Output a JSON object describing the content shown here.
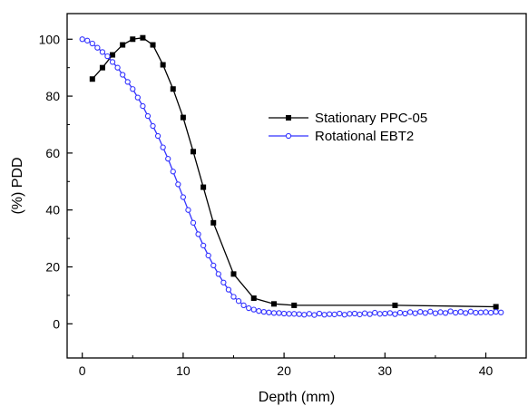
{
  "chart_data": {
    "type": "line",
    "title": "",
    "xlabel": "Depth (mm)",
    "ylabel": "(%) PDD",
    "xlim": [
      -1.5,
      44
    ],
    "ylim": [
      -12,
      109
    ],
    "xticks": [
      0,
      10,
      20,
      30,
      40
    ],
    "yticks": [
      0,
      20,
      40,
      60,
      80,
      100
    ],
    "grid": false,
    "legend_position": "right-middle",
    "series": [
      {
        "name": "Stationary PPC-05",
        "color": "#000000",
        "marker": "filled-square",
        "x": [
          1,
          2,
          3,
          4,
          5,
          6,
          7,
          8,
          9,
          10,
          11,
          12,
          13,
          15,
          17,
          19,
          21,
          31,
          41
        ],
        "y": [
          86,
          90,
          94.5,
          98,
          100,
          100.5,
          98,
          91,
          82.5,
          72.5,
          60.5,
          48,
          35.5,
          17.5,
          9,
          7,
          6.5,
          6.5,
          6
        ]
      },
      {
        "name": "Rotational EBT2",
        "color": "#3333ff",
        "marker": "open-circle",
        "x": [
          0,
          0.5,
          1,
          1.5,
          2,
          2.5,
          3,
          3.5,
          4,
          4.5,
          5,
          5.5,
          6,
          6.5,
          7,
          7.5,
          8,
          8.5,
          9,
          9.5,
          10,
          10.5,
          11,
          11.5,
          12,
          12.5,
          13,
          13.5,
          14,
          14.5,
          15,
          15.5,
          16,
          16.5,
          17,
          17.5,
          18,
          18.5,
          19,
          19.5,
          20,
          20.5,
          21,
          21.5,
          22,
          22.5,
          23,
          23.5,
          24,
          24.5,
          25,
          25.5,
          26,
          26.5,
          27,
          27.5,
          28,
          28.5,
          29,
          29.5,
          30,
          30.5,
          31,
          31.5,
          32,
          32.5,
          33,
          33.5,
          34,
          34.5,
          35,
          35.5,
          36,
          36.5,
          37,
          37.5,
          38,
          38.5,
          39,
          39.5,
          40,
          40.5,
          41,
          41.5
        ],
        "y": [
          100,
          99.5,
          98.5,
          97,
          95.5,
          94,
          92,
          90,
          87.5,
          85,
          82.5,
          79.5,
          76.5,
          73,
          69.5,
          66,
          62,
          58,
          53.5,
          49,
          44.5,
          40,
          35.5,
          31.5,
          27.5,
          24,
          20.5,
          17.5,
          14.5,
          12,
          9.5,
          8,
          6.5,
          5.5,
          5,
          4.5,
          4.2,
          4,
          3.8,
          3.8,
          3.6,
          3.5,
          3.5,
          3.4,
          3.2,
          3.5,
          3.1,
          3.6,
          3.2,
          3.4,
          3.3,
          3.6,
          3.2,
          3.5,
          3.6,
          3.3,
          3.7,
          3.4,
          3.9,
          3.5,
          3.6,
          3.8,
          3.4,
          3.9,
          3.6,
          4.1,
          3.7,
          4.2,
          3.8,
          4.3,
          3.7,
          4.1,
          3.8,
          4.4,
          3.9,
          4.2,
          3.8,
          4.3,
          3.9,
          4,
          4.1,
          3.9,
          4.2,
          4
        ]
      }
    ]
  }
}
